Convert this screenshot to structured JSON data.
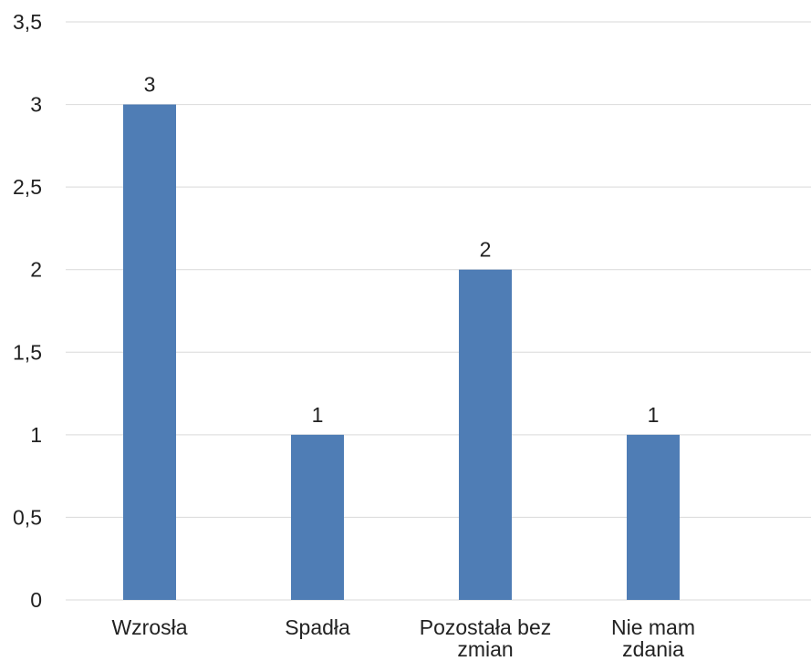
{
  "chart_data": {
    "type": "bar",
    "categories": [
      [
        "Wzrosła"
      ],
      [
        "Spadła"
      ],
      [
        "Pozostała bez",
        "zmian"
      ],
      [
        "Nie mam",
        "zdania"
      ]
    ],
    "values": [
      3,
      1,
      2,
      1
    ],
    "data_labels": [
      "3",
      "1",
      "2",
      "1"
    ],
    "y_ticks": [
      0,
      0.5,
      1,
      1.5,
      2,
      2.5,
      3,
      3.5
    ],
    "y_tick_labels": [
      "0",
      "0,5",
      "1",
      "1,5",
      "2",
      "2,5",
      "3",
      "3,5"
    ],
    "ylim": [
      0,
      3.5
    ],
    "grid": true,
    "legend": "none",
    "title": "",
    "xlabel": "",
    "ylabel": "",
    "colors": {
      "bar": "#4F7DB5",
      "grid": "#D9D9D9",
      "text": "#222222"
    }
  }
}
